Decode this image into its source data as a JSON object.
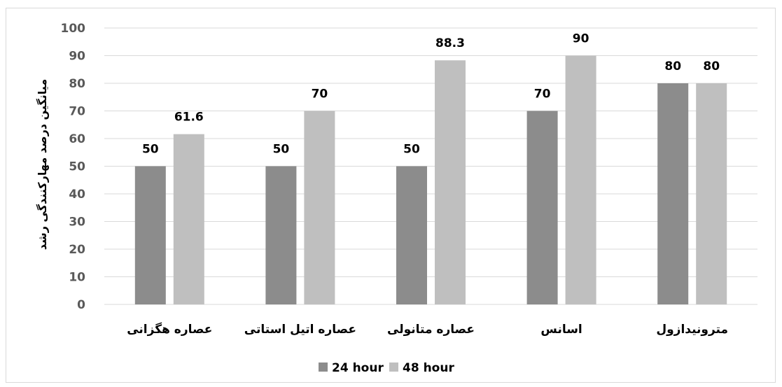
{
  "chart_data": {
    "type": "bar",
    "categories": [
      "عصاره هگزانی",
      "عصاره اتیل استاتی",
      "عصاره متانولی",
      "اسانس",
      "مترونیدازول"
    ],
    "series": [
      {
        "name": "24 hour",
        "values": [
          50,
          50,
          50,
          70,
          80
        ],
        "color": "#8c8c8c"
      },
      {
        "name": "48 hour",
        "values": [
          61.6,
          70,
          88.3,
          90,
          80
        ],
        "color": "#bfbfbf"
      }
    ],
    "data_labels": [
      [
        "50",
        "50",
        "50",
        "70",
        "80"
      ],
      [
        "61.6",
        "70",
        "88.3",
        "90",
        "80"
      ]
    ],
    "title": "",
    "xlabel": "",
    "ylabel": "میانگین درصد مهارکنندگی رشد",
    "ylim": [
      0,
      100
    ],
    "yticks": [
      0,
      10,
      20,
      30,
      40,
      50,
      60,
      70,
      80,
      90,
      100
    ],
    "grid": true,
    "gridline_color": "#d9d9d9",
    "legend_position": "bottom"
  }
}
